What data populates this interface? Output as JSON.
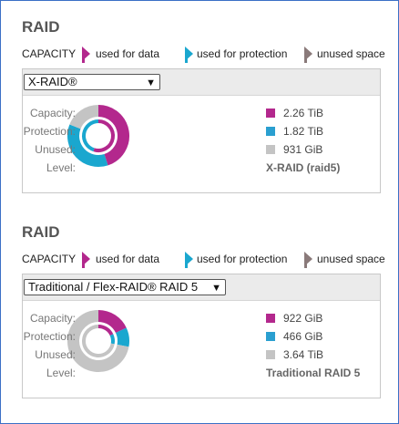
{
  "colors": {
    "data": "#b3288d",
    "protection": "#1aa7cf",
    "unused": "#c4c4c4",
    "frame_border": "#3b6fc6"
  },
  "legend": {
    "capacity": "CAPACITY",
    "data": "used for data",
    "protection": "used for protection",
    "unused": "unused space"
  },
  "volumes": [
    {
      "title": "RAID",
      "raid_select": "X-RAID®",
      "stats": {
        "capacity_label": "Capacity:",
        "capacity_value": "2.26 TiB",
        "protection_label": "Protection:",
        "protection_value": "1.82 TiB",
        "unused_label": "Unused:",
        "unused_value": "931 GiB",
        "level_label": "Level:",
        "level_value": "X-RAID (raid5)"
      },
      "outer_ring_fractions": {
        "data": 0.45,
        "protection": 0.36,
        "unused": 0.19
      },
      "inner_ring_fractions": {
        "data": 0.55,
        "protection": 0.45,
        "unused": 0.0
      }
    },
    {
      "title": "RAID",
      "raid_select": "Traditional / Flex-RAID® RAID 5",
      "stats": {
        "capacity_label": "Capacity:",
        "capacity_value": "922 GiB",
        "protection_label": "Protection:",
        "protection_value": "466 GiB",
        "unused_label": "Unused:",
        "unused_value": "3.64 TiB",
        "level_label": "Level:",
        "level_value": "Traditional RAID 5"
      },
      "outer_ring_fractions": {
        "data": 0.18,
        "protection": 0.1,
        "unused": 0.72
      },
      "inner_ring_fractions": {
        "data": 0.18,
        "protection": 0.1,
        "unused": 0.72
      }
    }
  ]
}
